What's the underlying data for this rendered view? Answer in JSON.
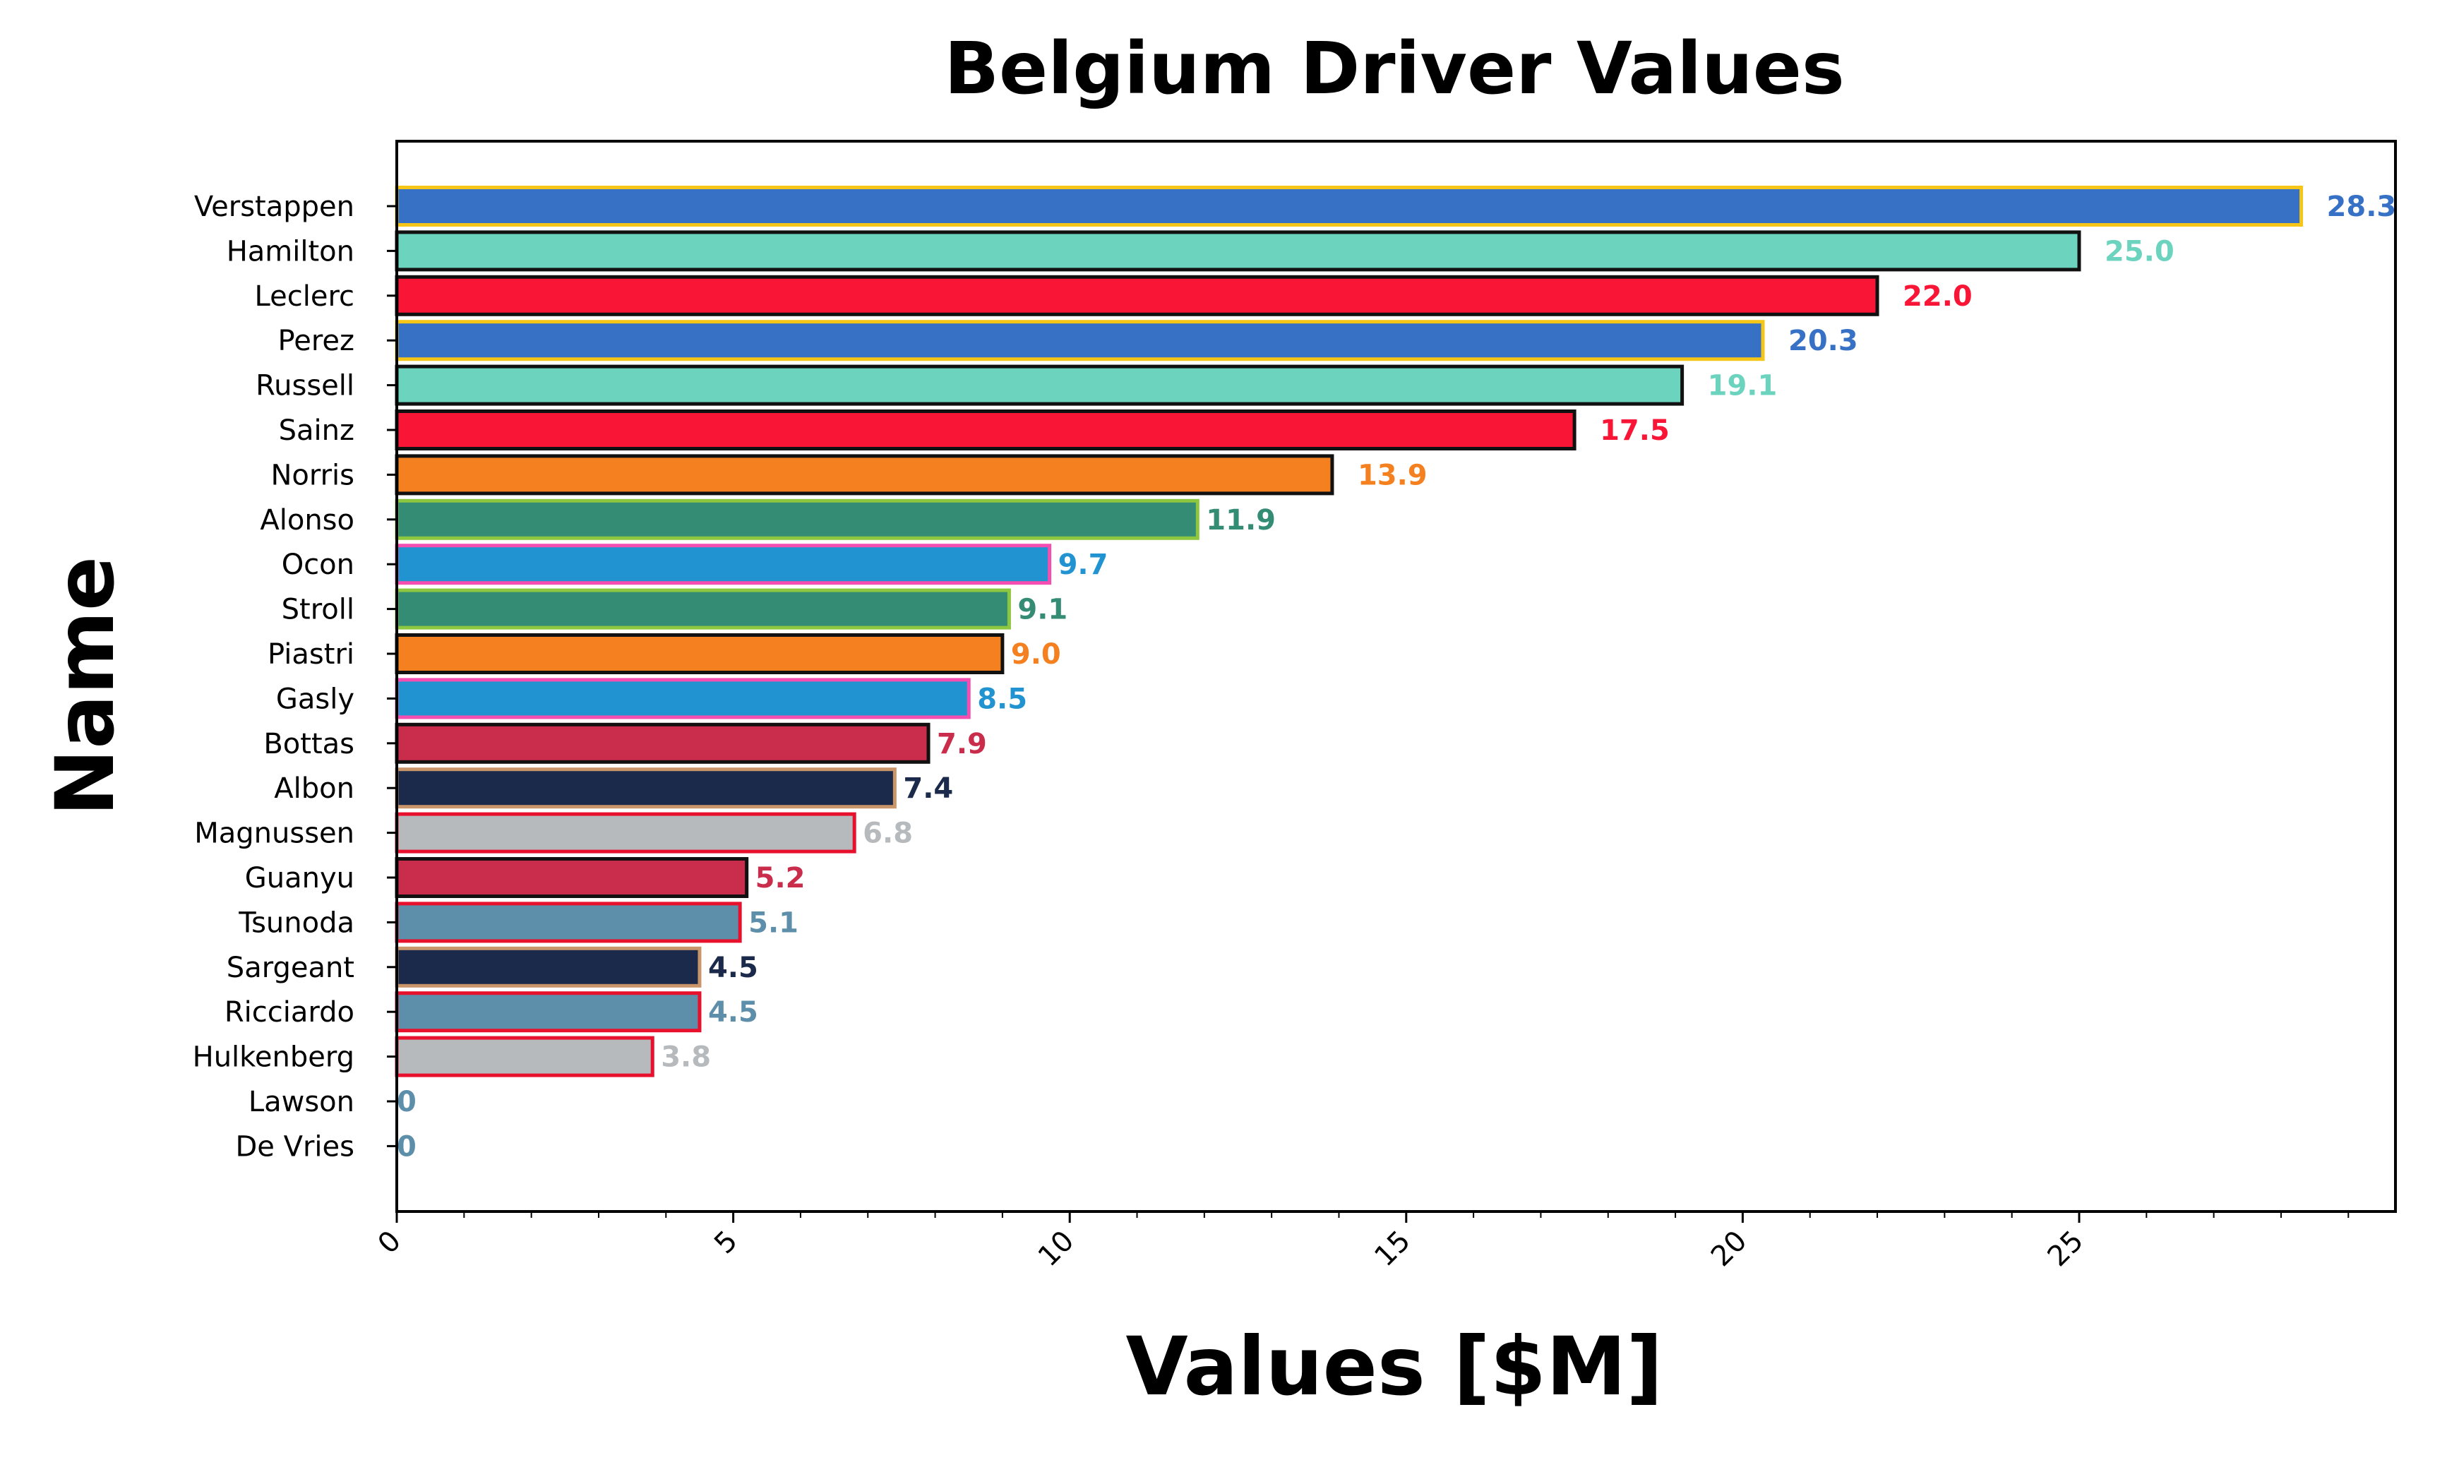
{
  "chart_data": {
    "type": "bar",
    "orientation": "horizontal",
    "title": "Belgium Driver Values",
    "xlabel": "Values [$M]",
    "ylabel": "Name",
    "xlim": [
      0,
      29.7
    ],
    "xticks": [
      0,
      5,
      10,
      15,
      20,
      25
    ],
    "grid": false,
    "legend": "none",
    "bars": [
      {
        "name": "Verstappen",
        "value": 28.3,
        "label": "28.3",
        "color": "#3671C6",
        "edge": "#F5C518"
      },
      {
        "name": "Hamilton",
        "value": 25.0,
        "label": "25.0",
        "color": "#6CD3BF",
        "edge": "#111111"
      },
      {
        "name": "Leclerc",
        "value": 22.0,
        "label": "22.0",
        "color": "#F91536",
        "edge": "#111111"
      },
      {
        "name": "Perez",
        "value": 20.3,
        "label": "20.3",
        "color": "#3671C6",
        "edge": "#F5C518"
      },
      {
        "name": "Russell",
        "value": 19.1,
        "label": "19.1",
        "color": "#6CD3BF",
        "edge": "#111111"
      },
      {
        "name": "Sainz",
        "value": 17.5,
        "label": "17.5",
        "color": "#F91536",
        "edge": "#111111"
      },
      {
        "name": "Norris",
        "value": 13.9,
        "label": "13.9",
        "color": "#F58020",
        "edge": "#111111"
      },
      {
        "name": "Alonso",
        "value": 11.9,
        "label": "11.9",
        "color": "#358C75",
        "edge": "#8DC63F"
      },
      {
        "name": "Ocon",
        "value": 9.7,
        "label": "9.7",
        "color": "#2293D1",
        "edge": "#F44FB0"
      },
      {
        "name": "Stroll",
        "value": 9.1,
        "label": "9.1",
        "color": "#358C75",
        "edge": "#8DC63F"
      },
      {
        "name": "Piastri",
        "value": 9.0,
        "label": "9.0",
        "color": "#F58020",
        "edge": "#111111"
      },
      {
        "name": "Gasly",
        "value": 8.5,
        "label": "8.5",
        "color": "#2293D1",
        "edge": "#F44FB0"
      },
      {
        "name": "Bottas",
        "value": 7.9,
        "label": "7.9",
        "color": "#C92D4B",
        "edge": "#111111"
      },
      {
        "name": "Albon",
        "value": 7.4,
        "label": "7.4",
        "color": "#1B2A4A",
        "edge": "#C9956B"
      },
      {
        "name": "Magnussen",
        "value": 6.8,
        "label": "6.8",
        "color": "#B6BABD",
        "edge": "#E8112D"
      },
      {
        "name": "Guanyu",
        "value": 5.2,
        "label": "5.2",
        "color": "#C92D4B",
        "edge": "#111111"
      },
      {
        "name": "Tsunoda",
        "value": 5.1,
        "label": "5.1",
        "color": "#5E8FAA",
        "edge": "#E8112D"
      },
      {
        "name": "Sargeant",
        "value": 4.5,
        "label": "4.5",
        "color": "#1B2A4A",
        "edge": "#C9956B"
      },
      {
        "name": "Ricciardo",
        "value": 4.5,
        "label": "4.5",
        "color": "#5E8FAA",
        "edge": "#E8112D"
      },
      {
        "name": "Hulkenberg",
        "value": 3.8,
        "label": "3.8",
        "color": "#B6BABD",
        "edge": "#E8112D"
      },
      {
        "name": "Lawson",
        "value": 0,
        "label": "0",
        "color": "#5E8FAA",
        "edge": "#E8112D"
      },
      {
        "name": "De Vries",
        "value": 0,
        "label": "0",
        "color": "#5E8FAA",
        "edge": "#E8112D"
      }
    ]
  }
}
